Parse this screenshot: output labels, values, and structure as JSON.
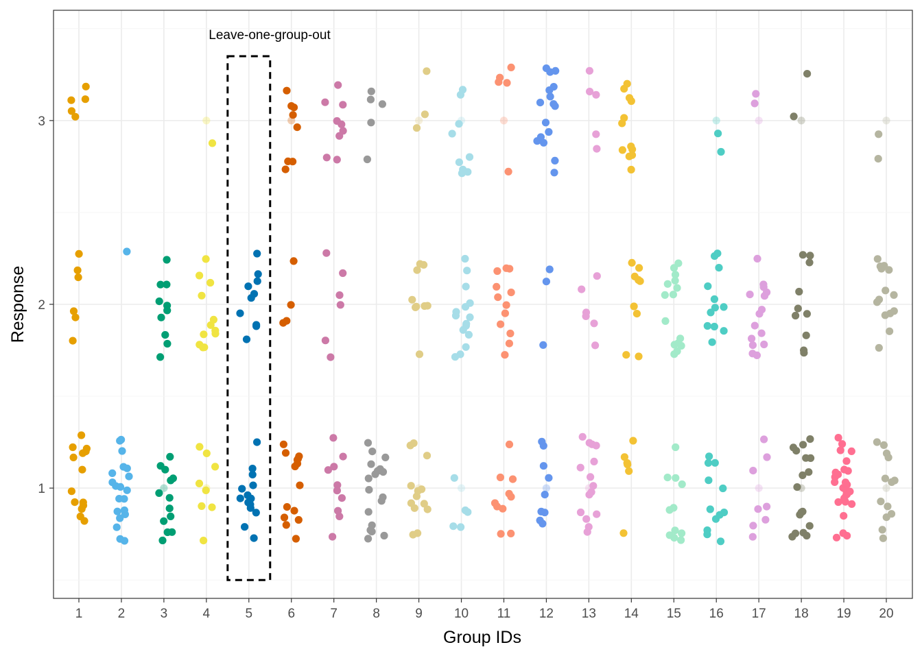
{
  "chart_data": {
    "type": "scatter",
    "xlabel": "Group IDs",
    "ylabel": "Response",
    "x_categories": [
      "1",
      "2",
      "3",
      "4",
      "5",
      "6",
      "7",
      "8",
      "9",
      "10",
      "11",
      "12",
      "13",
      "14",
      "15",
      "16",
      "17",
      "18",
      "19",
      "20"
    ],
    "y_ticks": [
      "1",
      "2",
      "3"
    ],
    "ylim": [
      0.4,
      3.6
    ],
    "grid": true,
    "jitter": true,
    "annotation": "Leave-one-group-out",
    "highlight_group": "5",
    "groups": [
      {
        "group": "1",
        "color": "#E69F00",
        "counts": {
          "1": 14,
          "2": 6,
          "3": 5
        }
      },
      {
        "group": "2",
        "color": "#56B4E9",
        "counts": {
          "1": 20,
          "2": 1,
          "3": 0
        }
      },
      {
        "group": "3",
        "color": "#009E73",
        "counts": {
          "1": 13,
          "2": 10,
          "3": 0
        }
      },
      {
        "group": "4",
        "color": "#F0E442",
        "counts": {
          "1": 8,
          "2": 12,
          "3": 1
        }
      },
      {
        "group": "5",
        "color": "#0072B2",
        "counts": {
          "1": 14,
          "2": 10,
          "3": 0
        }
      },
      {
        "group": "6",
        "color": "#D55E00",
        "counts": {
          "1": 14,
          "2": 4,
          "3": 8
        }
      },
      {
        "group": "7",
        "color": "#CC79A7",
        "counts": {
          "1": 10,
          "2": 6,
          "3": 9
        }
      },
      {
        "group": "8",
        "color": "#999999",
        "counts": {
          "1": 18,
          "2": 0,
          "3": 5
        }
      },
      {
        "group": "9",
        "color": "#E0CD87",
        "counts": {
          "1": 13,
          "2": 9,
          "3": 3
        }
      },
      {
        "group": "10",
        "color": "#A6DDE8",
        "counts": {
          "1": 5,
          "2": 15,
          "3": 9
        }
      },
      {
        "group": "11",
        "color": "#FC9272",
        "counts": {
          "1": 10,
          "2": 12,
          "3": 5
        }
      },
      {
        "group": "12",
        "color": "#6495ED",
        "counts": {
          "1": 9,
          "2": 3,
          "3": 16
        }
      },
      {
        "group": "13",
        "color": "#E7A1D7",
        "counts": {
          "1": 15,
          "2": 6,
          "3": 5
        }
      },
      {
        "group": "14",
        "color": "#F3C234",
        "counts": {
          "1": 6,
          "2": 9,
          "3": 12
        }
      },
      {
        "group": "15",
        "color": "#A2EAC9",
        "counts": {
          "1": 11,
          "2": 15,
          "3": 0
        }
      },
      {
        "group": "16",
        "color": "#4ECDC4",
        "counts": {
          "1": 12,
          "2": 12,
          "3": 2
        }
      },
      {
        "group": "17",
        "color": "#DDA0DD",
        "counts": {
          "1": 8,
          "2": 15,
          "3": 2
        }
      },
      {
        "group": "18",
        "color": "#7F8068",
        "counts": {
          "1": 17,
          "2": 10,
          "3": 2
        }
      },
      {
        "group": "19",
        "color": "#FF6F91",
        "counts": {
          "1": 26,
          "2": 0,
          "3": 0
        }
      },
      {
        "group": "20",
        "color": "#B5B5A0",
        "counts": {
          "1": 13,
          "2": 14,
          "3": 2
        }
      }
    ]
  }
}
